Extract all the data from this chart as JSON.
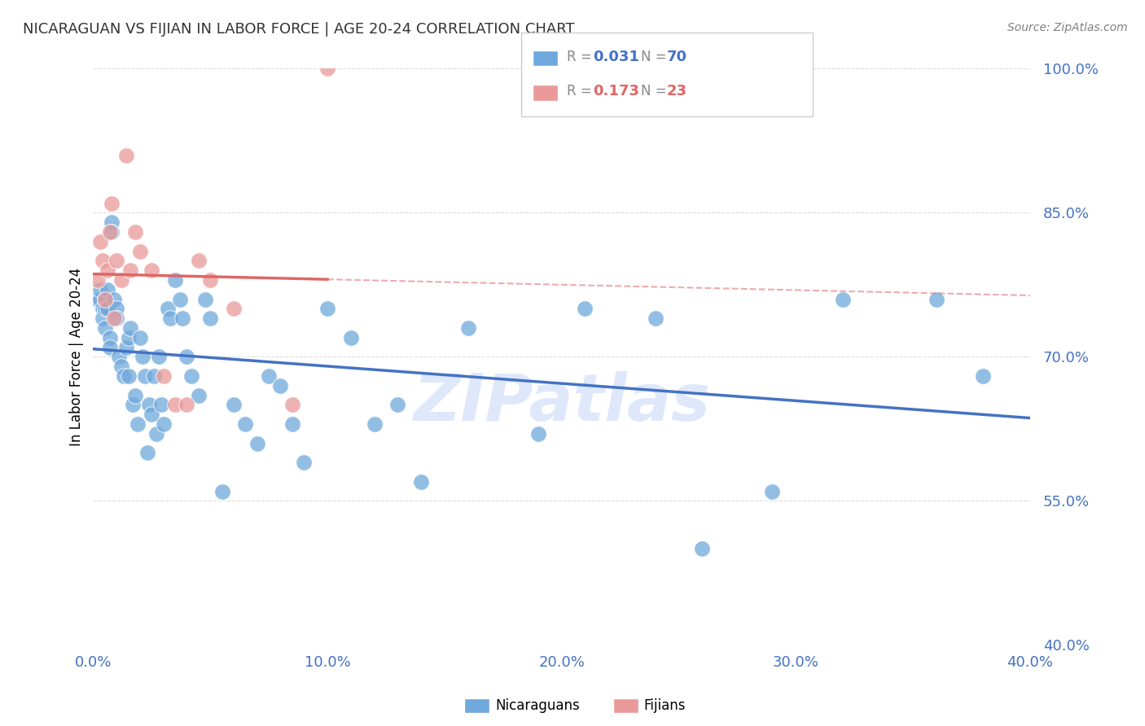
{
  "title": "NICARAGUAN VS FIJIAN IN LABOR FORCE | AGE 20-24 CORRELATION CHART",
  "source": "Source: ZipAtlas.com",
  "ylabel": "In Labor Force | Age 20-24",
  "watermark": "ZIPatlas",
  "x_min": 0.0,
  "x_max": 0.4,
  "y_min": 0.4,
  "y_max": 1.0,
  "nicaraguan_color": "#6fa8dc",
  "fijian_color": "#ea9999",
  "trendline_nicaraguan_color": "#4472c4",
  "trendline_fijian_color": "#e06666",
  "legend_r_nic": "0.031",
  "legend_n_nic": "70",
  "legend_r_fij": "0.173",
  "legend_n_fij": "23",
  "nicaraguan_x": [
    0.002,
    0.003,
    0.003,
    0.004,
    0.004,
    0.005,
    0.005,
    0.005,
    0.006,
    0.006,
    0.007,
    0.007,
    0.008,
    0.008,
    0.009,
    0.01,
    0.01,
    0.011,
    0.012,
    0.013,
    0.014,
    0.015,
    0.015,
    0.016,
    0.017,
    0.018,
    0.019,
    0.02,
    0.021,
    0.022,
    0.023,
    0.024,
    0.025,
    0.026,
    0.027,
    0.028,
    0.029,
    0.03,
    0.032,
    0.033,
    0.035,
    0.037,
    0.038,
    0.04,
    0.042,
    0.045,
    0.048,
    0.05,
    0.055,
    0.06,
    0.065,
    0.07,
    0.075,
    0.08,
    0.085,
    0.09,
    0.1,
    0.11,
    0.12,
    0.13,
    0.14,
    0.16,
    0.19,
    0.21,
    0.24,
    0.26,
    0.29,
    0.32,
    0.36,
    0.38
  ],
  "nicaraguan_y": [
    0.76,
    0.76,
    0.77,
    0.75,
    0.74,
    0.76,
    0.75,
    0.73,
    0.77,
    0.75,
    0.72,
    0.71,
    0.84,
    0.83,
    0.76,
    0.75,
    0.74,
    0.7,
    0.69,
    0.68,
    0.71,
    0.72,
    0.68,
    0.73,
    0.65,
    0.66,
    0.63,
    0.72,
    0.7,
    0.68,
    0.6,
    0.65,
    0.64,
    0.68,
    0.62,
    0.7,
    0.65,
    0.63,
    0.75,
    0.74,
    0.78,
    0.76,
    0.74,
    0.7,
    0.68,
    0.66,
    0.76,
    0.74,
    0.56,
    0.65,
    0.63,
    0.61,
    0.68,
    0.67,
    0.63,
    0.59,
    0.75,
    0.72,
    0.63,
    0.65,
    0.57,
    0.73,
    0.62,
    0.75,
    0.74,
    0.5,
    0.56,
    0.76,
    0.76,
    0.68
  ],
  "fijian_x": [
    0.002,
    0.003,
    0.004,
    0.005,
    0.006,
    0.007,
    0.008,
    0.009,
    0.01,
    0.012,
    0.014,
    0.016,
    0.018,
    0.02,
    0.025,
    0.03,
    0.035,
    0.04,
    0.045,
    0.05,
    0.06,
    0.085,
    0.1
  ],
  "fijian_y": [
    0.78,
    0.82,
    0.8,
    0.76,
    0.79,
    0.83,
    0.86,
    0.74,
    0.8,
    0.78,
    0.91,
    0.79,
    0.83,
    0.81,
    0.79,
    0.68,
    0.65,
    0.65,
    0.8,
    0.78,
    0.75,
    0.65,
    1.0
  ],
  "background_color": "#ffffff",
  "grid_color": "#dddddd",
  "axis_color": "#4472c4",
  "title_color": "#333333",
  "watermark_color": "#c9daf8"
}
